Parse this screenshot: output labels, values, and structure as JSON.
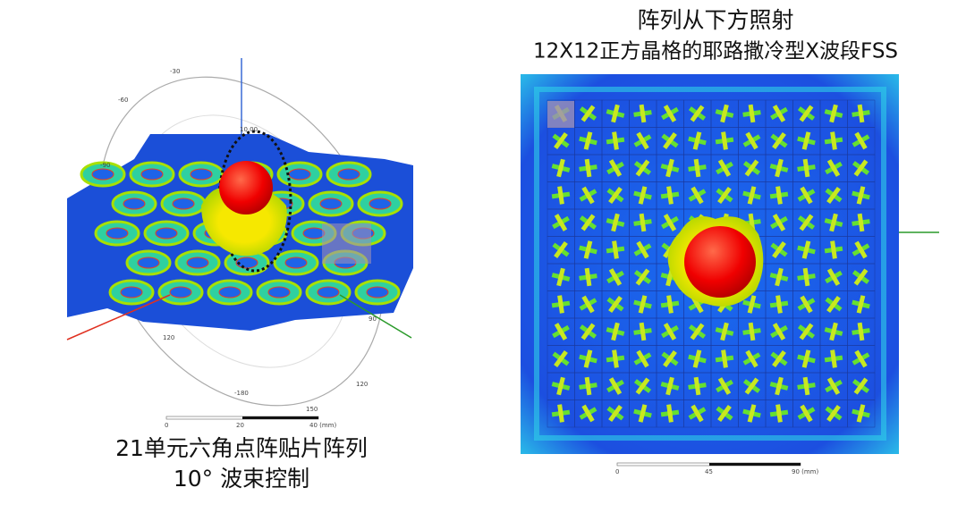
{
  "left_panel": {
    "caption": [
      "21单元六角点阵贴片阵列",
      "10° 波束控制"
    ],
    "polar_labels": [
      "-30",
      "-60",
      "-90",
      "10.00",
      "90",
      "120",
      "150",
      "-180",
      "120"
    ],
    "scale_labels": [
      "0",
      "20",
      "40 (mm)"
    ]
  },
  "right_panel": {
    "title": [
      "阵列从下方照射",
      "12X12正方晶格的耶路撒冷型X波段FSS"
    ],
    "scale_labels": [
      "0",
      "45",
      "90 (mm)"
    ]
  }
}
